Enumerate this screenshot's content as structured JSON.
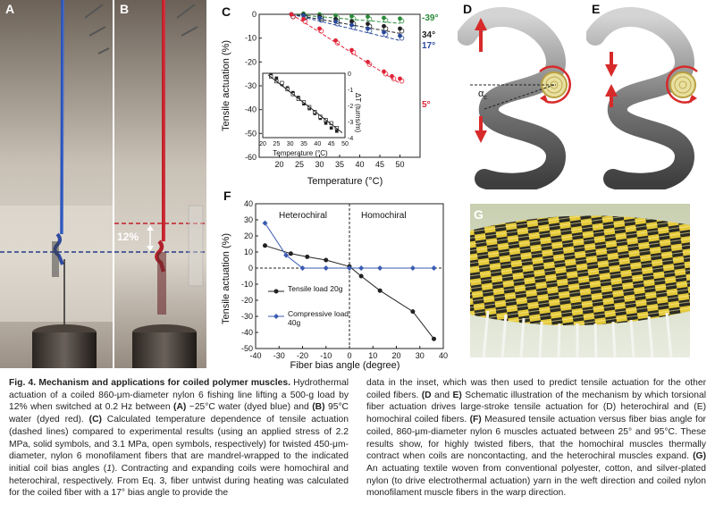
{
  "panels": {
    "a": "A",
    "b": "B",
    "c": "C",
    "d": "D",
    "e": "E",
    "f": "F",
    "g": "G"
  },
  "photo_b": {
    "stroke_label": "12%"
  },
  "diagram_d": {
    "angle_label": "α",
    "angle_sub": "c"
  },
  "chart_c": {
    "ylabel": "Tensile actuation (%)",
    "xlabel": "Temperature (°C)",
    "series_labels": [
      "-39°",
      "34°",
      "17°",
      "5°"
    ],
    "inset": {
      "xlabel": "Temperature (°C)",
      "ylabel": "ΔT (turns/m)"
    }
  },
  "chart_f": {
    "ylabel": "Tensile actuation (%)",
    "xlabel": "Fiber bias angle (degree)",
    "region_left": "Heterochiral",
    "region_right": "Homochiral",
    "legend": [
      "Tensile load 20g",
      "Compressive load 40g"
    ]
  },
  "chart_data": [
    {
      "type": "scatter",
      "xlim": [
        15,
        55
      ],
      "ylim": [
        -60,
        0
      ],
      "xticks": [
        20,
        25,
        30,
        35,
        40,
        45,
        50
      ],
      "yticks": [
        0,
        -10,
        -20,
        -30,
        -40,
        -50,
        -60
      ],
      "series": [
        {
          "name": "-39°",
          "color": "#2a8a3a",
          "x": [
            23,
            26,
            30,
            34,
            38,
            42,
            46,
            50
          ],
          "y": [
            0,
            0.3,
            0,
            -0.5,
            -0.8,
            -1,
            -1.5,
            -1.8
          ]
        },
        {
          "name": "34°",
          "color": "#222222",
          "x": [
            23,
            26,
            30,
            34,
            38,
            42,
            46,
            50
          ],
          "y": [
            0,
            -0.2,
            -0.8,
            -2,
            -3,
            -4,
            -5,
            -6
          ]
        },
        {
          "name": "17°",
          "color": "#2a4a9a",
          "x": [
            23,
            26,
            30,
            34,
            38,
            42,
            46,
            50
          ],
          "y": [
            0,
            -0.5,
            -1.5,
            -3,
            -4.5,
            -6,
            -7.5,
            -9
          ]
        },
        {
          "name": "5°",
          "color": "#e0263a",
          "x": [
            23,
            26,
            30,
            34,
            38,
            42,
            46,
            48,
            50
          ],
          "y": [
            0,
            -2,
            -6,
            -11,
            -15,
            -20,
            -24,
            -26,
            -27
          ]
        }
      ]
    },
    {
      "type": "scatter",
      "xlim": [
        20,
        50
      ],
      "ylim": [
        -4,
        0
      ],
      "xticks": [
        20,
        25,
        30,
        35,
        40,
        45,
        50
      ],
      "yticks": [
        0,
        -1,
        -2,
        -3,
        -4
      ],
      "series": [
        {
          "name": "solid",
          "x": [
            23,
            25,
            27,
            29,
            31,
            33,
            35,
            37,
            39,
            41,
            43,
            45,
            47
          ],
          "y": [
            -0.1,
            -0.3,
            -0.7,
            -0.9,
            -1.2,
            -1.5,
            -1.9,
            -2.2,
            -2.5,
            -2.8,
            -3.1,
            -3.4,
            -3.6
          ]
        },
        {
          "name": "open",
          "x": [
            23,
            25,
            27,
            29,
            31,
            33,
            35,
            37,
            39,
            41,
            43,
            45,
            47
          ],
          "y": [
            -0.2,
            -0.5,
            -0.6,
            -1.0,
            -1.3,
            -1.6,
            -1.8,
            -2.1,
            -2.4,
            -2.7,
            -2.9,
            -3.1,
            -3.4
          ]
        }
      ]
    },
    {
      "type": "line",
      "xlim": [
        -40,
        40
      ],
      "ylim": [
        -50,
        40
      ],
      "xticks": [
        -40,
        -30,
        -20,
        -10,
        0,
        10,
        20,
        30,
        40
      ],
      "yticks": [
        40,
        30,
        20,
        10,
        0,
        -10,
        -20,
        -30,
        -40,
        -50
      ],
      "series": [
        {
          "name": "Tensile load 20g",
          "color": "#222222",
          "x": [
            -36,
            -25,
            -18,
            -10,
            0,
            5,
            13,
            27,
            36
          ],
          "y": [
            14,
            9,
            7,
            5,
            1,
            -5,
            -14,
            -27,
            -44
          ]
        },
        {
          "name": "Compressive load 40g",
          "color": "#3a5bb0",
          "x": [
            -36,
            -27,
            -20,
            -10,
            0,
            5,
            13,
            27,
            36
          ],
          "y": [
            28,
            8,
            0,
            0,
            0,
            0,
            0,
            0,
            0
          ]
        }
      ]
    }
  ],
  "caption": {
    "left": [
      {
        "b": "Fig. 4. Mechanism and applications for coiled polymer muscles."
      },
      {
        "t": " Hydrothermal actuation of a coiled 860-μm-diameter nylon 6 fishing line lifting a 500-g load by 12% when switched at 0.2 Hz between "
      },
      {
        "b": "(A)"
      },
      {
        "t": " ~25°C water (dyed blue) and "
      },
      {
        "b": "(B)"
      },
      {
        "t": " 95°C water (dyed red). "
      },
      {
        "b": "(C)"
      },
      {
        "t": " Calculated temperature dependence of tensile actuation (dashed lines) compared to experimental results (using an applied stress of 2.2 MPa, solid symbols, and 3.1 MPa, open symbols, respectively) for twisted 450-μm-diameter, nylon 6 monofilament fibers that are mandrel-wrapped to the indicated initial coil bias angles ("
      },
      {
        "i": "1"
      },
      {
        "t": "). Contracting and expanding coils were homochiral and heterochiral, respectively. From Eq. 3, fiber untwist during heating was calculated for the coiled fiber with a 17° bias angle to provide the"
      }
    ],
    "right": [
      {
        "t": "data in the inset, which was then used to predict tensile actuation for the other coiled fibers. "
      },
      {
        "b": "(D"
      },
      {
        "t": " and "
      },
      {
        "b": "E)"
      },
      {
        "t": " Schematic illustration of the mechanism by which torsional fiber actuation drives large-stroke tensile actuation for (D) heterochiral and (E) homochiral coiled fibers. "
      },
      {
        "b": "(F)"
      },
      {
        "t": " Measured tensile actuation versus fiber bias angle for coiled, 860-μm-diameter nylon 6 muscles actuated between 25° and 95°C. These results show, for highly twisted fibers, that the homochiral muscles thermally contract when coils are noncontacting, and the heterochiral muscles expand. "
      },
      {
        "b": "(G)"
      },
      {
        "t": " An actuating textile woven from conventional polyester, cotton, and silver-plated nylon (to drive electrothermal actuation) yarn in the weft direction and coiled nylon monofilament muscle fibers in the warp direction."
      }
    ]
  }
}
